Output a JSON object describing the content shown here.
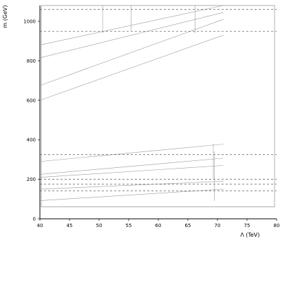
{
  "chart_data": {
    "type": "line",
    "title": "",
    "xlabel": "Λ (TeV)",
    "ylabel": "m (GeV)",
    "xlim": [
      40,
      80
    ],
    "ylim": [
      0,
      1080
    ],
    "x_ticks": [
      "40",
      "45",
      "50",
      "55",
      "60",
      "65",
      "70",
      "75",
      "80"
    ],
    "y_ticks": [
      "0",
      "200",
      "400",
      "600",
      "800",
      "1000"
    ],
    "grid": false,
    "series": [
      {
        "points": [
          [
            40,
            880
          ],
          [
            71,
            1080
          ]
        ],
        "style": "solid"
      },
      {
        "points": [
          [
            40,
            815
          ],
          [
            71,
            1045
          ]
        ],
        "style": "solid"
      },
      {
        "points": [
          [
            40,
            675
          ],
          [
            71,
            1010
          ]
        ],
        "style": "solid"
      },
      {
        "points": [
          [
            40,
            600
          ],
          [
            71,
            930
          ]
        ],
        "style": "solid"
      },
      {
        "points": [
          [
            40,
            290
          ],
          [
            71,
            378
          ]
        ],
        "style": "solid"
      },
      {
        "points": [
          [
            40,
            225
          ],
          [
            71,
            307
          ]
        ],
        "style": "solid"
      },
      {
        "points": [
          [
            40,
            210
          ],
          [
            71,
            270
          ]
        ],
        "style": "solid"
      },
      {
        "points": [
          [
            40,
            150
          ],
          [
            71,
            190
          ]
        ],
        "style": "solid"
      },
      {
        "points": [
          [
            40,
            92
          ],
          [
            71,
            150
          ]
        ],
        "style": "solid"
      },
      {
        "points": [
          [
            40,
            1060
          ],
          [
            80,
            1060
          ]
        ],
        "style": "dashed"
      },
      {
        "points": [
          [
            40,
            950
          ],
          [
            80,
            950
          ]
        ],
        "style": "dashed"
      },
      {
        "points": [
          [
            40,
            325
          ],
          [
            80,
            325
          ]
        ],
        "style": "dashed"
      },
      {
        "points": [
          [
            40,
            200
          ],
          [
            80,
            200
          ]
        ],
        "style": "dashed"
      },
      {
        "points": [
          [
            40,
            175
          ],
          [
            80,
            175
          ]
        ],
        "style": "dashed"
      },
      {
        "points": [
          [
            40,
            142
          ],
          [
            80,
            142
          ]
        ],
        "style": "dashed"
      }
    ],
    "vertical_lines": [
      {
        "x": 50.6,
        "y_range": [
          940,
          1080
        ]
      },
      {
        "x": 55.4,
        "y_range": [
          950,
          1080
        ]
      },
      {
        "x": 66.2,
        "y_range": [
          940,
          1080
        ]
      },
      {
        "x": 69.3,
        "y_range": [
          200,
          380
        ]
      },
      {
        "x": 69.5,
        "y_range": [
          90,
          340
        ]
      }
    ],
    "plot_border": {
      "x_range": [
        40,
        80
      ],
      "y_range": [
        60,
        1080
      ]
    }
  }
}
